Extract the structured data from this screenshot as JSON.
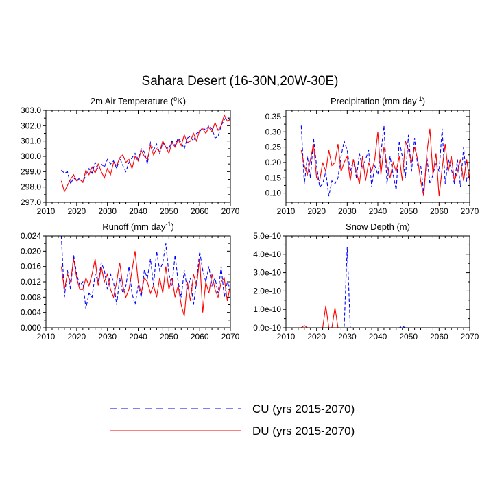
{
  "suptitle": "Sahara Desert (16-30N,20W-30E)",
  "legend": {
    "items": [
      {
        "label": "CU (yrs 2015-2070)",
        "color": "#0000ff",
        "dash": true
      },
      {
        "label": "DU (yrs 2015-2070)",
        "color": "#ff0000",
        "dash": false
      }
    ]
  },
  "chart_data": [
    {
      "type": "line",
      "title": "2m Air Temperature (°K)",
      "title_parts": [
        "2m Air Temperature (",
        "o",
        "K)"
      ],
      "xlim": [
        2010,
        2070
      ],
      "ylim": [
        297.0,
        303.0
      ],
      "xticks": [
        2010,
        2020,
        2030,
        2040,
        2050,
        2060,
        2070
      ],
      "yticks": [
        "297.0",
        "298.0",
        "299.0",
        "300.0",
        "301.0",
        "302.0",
        "303.0"
      ],
      "x": [
        2015,
        2016,
        2017,
        2018,
        2019,
        2020,
        2021,
        2022,
        2023,
        2024,
        2025,
        2026,
        2027,
        2028,
        2029,
        2030,
        2031,
        2032,
        2033,
        2034,
        2035,
        2036,
        2037,
        2038,
        2039,
        2040,
        2041,
        2042,
        2043,
        2044,
        2045,
        2046,
        2047,
        2048,
        2049,
        2050,
        2051,
        2052,
        2053,
        2054,
        2055,
        2056,
        2057,
        2058,
        2059,
        2060,
        2061,
        2062,
        2063,
        2064,
        2065,
        2066,
        2067,
        2068,
        2069,
        2070
      ],
      "series": [
        {
          "name": "CU (yrs 2015-2070)",
          "color": "#0000ff",
          "dash": true,
          "values": [
            299.1,
            298.9,
            299.0,
            298.2,
            298.6,
            298.4,
            298.6,
            298.3,
            298.8,
            299.2,
            298.9,
            299.6,
            299.1,
            299.5,
            299.3,
            299.8,
            299.5,
            299.7,
            299.2,
            299.9,
            299.4,
            299.0,
            299.6,
            299.9,
            300.2,
            299.8,
            300.5,
            300.3,
            299.5,
            300.9,
            300.4,
            300.8,
            300.2,
            300.9,
            300.6,
            300.5,
            301.0,
            300.7,
            301.2,
            300.9,
            300.5,
            301.2,
            301.3,
            301.0,
            301.5,
            301.6,
            301.9,
            301.7,
            302.0,
            301.8,
            301.2,
            301.3,
            302.0,
            302.4,
            302.6,
            302.3
          ]
        },
        {
          "name": "DU (yrs 2015-2070)",
          "color": "#ff0000",
          "dash": false,
          "values": [
            298.4,
            297.7,
            298.1,
            298.5,
            298.8,
            298.4,
            298.5,
            298.3,
            299.1,
            298.8,
            299.3,
            298.9,
            299.5,
            299.0,
            298.6,
            299.2,
            298.8,
            299.6,
            299.4,
            299.9,
            300.1,
            299.6,
            299.8,
            299.2,
            300.0,
            299.7,
            300.4,
            300.0,
            299.8,
            300.7,
            300.1,
            300.5,
            300.3,
            301.0,
            300.6,
            300.2,
            300.9,
            300.6,
            301.1,
            300.7,
            301.4,
            300.9,
            301.0,
            301.5,
            301.0,
            301.7,
            301.8,
            301.5,
            301.9,
            301.6,
            302.2,
            301.7,
            302.0,
            302.7,
            302.3,
            302.4
          ]
        }
      ]
    },
    {
      "type": "line",
      "title": "Precipitation (mm day-1)",
      "title_parts": [
        "Precipitation (mm day",
        "-1",
        ")"
      ],
      "xlim": [
        2010,
        2070
      ],
      "ylim": [
        0.07,
        0.37
      ],
      "xticks": [
        2010,
        2020,
        2030,
        2040,
        2050,
        2060,
        2070
      ],
      "yticks": [
        "0.10",
        "0.15",
        "0.20",
        "0.25",
        "0.30",
        "0.35"
      ],
      "x": [
        2015,
        2016,
        2017,
        2018,
        2019,
        2020,
        2021,
        2022,
        2023,
        2024,
        2025,
        2026,
        2027,
        2028,
        2029,
        2030,
        2031,
        2032,
        2033,
        2034,
        2035,
        2036,
        2037,
        2038,
        2039,
        2040,
        2041,
        2042,
        2043,
        2044,
        2045,
        2046,
        2047,
        2048,
        2049,
        2050,
        2051,
        2052,
        2053,
        2054,
        2055,
        2056,
        2057,
        2058,
        2059,
        2060,
        2061,
        2062,
        2063,
        2064,
        2065,
        2066,
        2067,
        2068,
        2069,
        2070
      ],
      "series": [
        {
          "name": "CU (yrs 2015-2070)",
          "color": "#0000ff",
          "dash": true,
          "values": [
            0.32,
            0.13,
            0.22,
            0.15,
            0.28,
            0.19,
            0.12,
            0.13,
            0.17,
            0.09,
            0.14,
            0.13,
            0.15,
            0.22,
            0.27,
            0.24,
            0.17,
            0.21,
            0.15,
            0.23,
            0.18,
            0.21,
            0.24,
            0.12,
            0.19,
            0.16,
            0.23,
            0.32,
            0.13,
            0.22,
            0.16,
            0.11,
            0.27,
            0.22,
            0.15,
            0.29,
            0.17,
            0.28,
            0.19,
            0.19,
            0.1,
            0.22,
            0.13,
            0.16,
            0.2,
            0.17,
            0.31,
            0.13,
            0.21,
            0.18,
            0.13,
            0.21,
            0.12,
            0.25,
            0.14,
            0.16
          ]
        },
        {
          "name": "DU (yrs 2015-2070)",
          "color": "#ff0000",
          "dash": false,
          "values": [
            0.24,
            0.19,
            0.16,
            0.21,
            0.26,
            0.15,
            0.14,
            0.2,
            0.17,
            0.24,
            0.19,
            0.2,
            0.26,
            0.17,
            0.2,
            0.22,
            0.14,
            0.21,
            0.17,
            0.13,
            0.22,
            0.14,
            0.2,
            0.17,
            0.21,
            0.3,
            0.16,
            0.25,
            0.19,
            0.15,
            0.2,
            0.17,
            0.22,
            0.14,
            0.27,
            0.24,
            0.2,
            0.25,
            0.21,
            0.14,
            0.09,
            0.23,
            0.31,
            0.16,
            0.23,
            0.09,
            0.18,
            0.26,
            0.17,
            0.22,
            0.14,
            0.17,
            0.21,
            0.14,
            0.21,
            0.14
          ]
        }
      ]
    },
    {
      "type": "line",
      "title": "Runoff (mm day-1)",
      "title_parts": [
        "Runoff (mm day",
        "-1",
        ")"
      ],
      "xlim": [
        2010,
        2070
      ],
      "ylim": [
        0.0,
        0.024
      ],
      "xticks": [
        2010,
        2020,
        2030,
        2040,
        2050,
        2060,
        2070
      ],
      "yticks": [
        "0.000",
        "0.004",
        "0.008",
        "0.012",
        "0.016",
        "0.020",
        "0.024"
      ],
      "x": [
        2015,
        2016,
        2017,
        2018,
        2019,
        2020,
        2021,
        2022,
        2023,
        2024,
        2025,
        2026,
        2027,
        2028,
        2029,
        2030,
        2031,
        2032,
        2033,
        2034,
        2035,
        2036,
        2037,
        2038,
        2039,
        2040,
        2041,
        2042,
        2043,
        2044,
        2045,
        2046,
        2047,
        2048,
        2049,
        2050,
        2051,
        2052,
        2053,
        2054,
        2055,
        2056,
        2057,
        2058,
        2059,
        2060,
        2061,
        2062,
        2063,
        2064,
        2065,
        2066,
        2067,
        2068,
        2069,
        2070
      ],
      "series": [
        {
          "name": "CU (yrs 2015-2070)",
          "color": "#0000ff",
          "dash": true,
          "values": [
            0.024,
            0.008,
            0.015,
            0.01,
            0.019,
            0.014,
            0.011,
            0.012,
            0.005,
            0.009,
            0.008,
            0.014,
            0.012,
            0.017,
            0.015,
            0.01,
            0.014,
            0.012,
            0.006,
            0.013,
            0.009,
            0.011,
            0.016,
            0.009,
            0.006,
            0.011,
            0.008,
            0.015,
            0.013,
            0.018,
            0.011,
            0.02,
            0.015,
            0.017,
            0.022,
            0.014,
            0.011,
            0.019,
            0.012,
            0.008,
            0.015,
            0.01,
            0.013,
            0.006,
            0.012,
            0.02,
            0.015,
            0.012,
            0.016,
            0.011,
            0.013,
            0.009,
            0.016,
            0.008,
            0.012,
            0.01
          ]
        },
        {
          "name": "DU (yrs 2015-2070)",
          "color": "#ff0000",
          "dash": false,
          "values": [
            0.016,
            0.01,
            0.014,
            0.012,
            0.018,
            0.013,
            0.01,
            0.01,
            0.013,
            0.011,
            0.014,
            0.018,
            0.011,
            0.016,
            0.012,
            0.014,
            0.01,
            0.008,
            0.012,
            0.017,
            0.011,
            0.008,
            0.01,
            0.015,
            0.02,
            0.012,
            0.009,
            0.013,
            0.012,
            0.009,
            0.011,
            0.008,
            0.013,
            0.009,
            0.016,
            0.01,
            0.013,
            0.008,
            0.011,
            0.006,
            0.003,
            0.012,
            0.007,
            0.014,
            0.011,
            0.018,
            0.004,
            0.012,
            0.009,
            0.014,
            0.01,
            0.008,
            0.012,
            0.013,
            0.007,
            0.011
          ]
        }
      ]
    },
    {
      "type": "line",
      "title": "Snow Depth (m)",
      "title_parts": [
        "Snow Depth (m)"
      ],
      "xlim": [
        2010,
        2070
      ],
      "ylim": [
        0.0,
        5e-10
      ],
      "xticks": [
        2010,
        2020,
        2030,
        2040,
        2050,
        2060,
        2070
      ],
      "yticks": [
        "0.0e-10",
        "1.0e-10",
        "2.0e-10",
        "3.0e-10",
        "4.0e-10",
        "5.0e-10"
      ],
      "x": [
        2015,
        2016,
        2017,
        2018,
        2019,
        2020,
        2021,
        2022,
        2023,
        2024,
        2025,
        2026,
        2027,
        2028,
        2029,
        2030,
        2031,
        2032,
        2033,
        2034,
        2035,
        2036,
        2037,
        2038,
        2039,
        2040,
        2041,
        2042,
        2043,
        2044,
        2045,
        2046,
        2047,
        2048,
        2049,
        2050,
        2051,
        2052,
        2053,
        2054,
        2055,
        2056,
        2057,
        2058,
        2059,
        2060,
        2061,
        2062,
        2063,
        2064,
        2065,
        2066,
        2067,
        2068,
        2069,
        2070
      ],
      "series": [
        {
          "name": "CU (yrs 2015-2070)",
          "color": "#0000ff",
          "dash": true,
          "values": [
            0,
            0,
            0,
            0,
            0,
            0,
            0,
            0,
            0,
            0,
            0,
            0,
            0,
            0,
            0,
            4.4e-10,
            0,
            0,
            0,
            0,
            0,
            0,
            0,
            0,
            0,
            0,
            0,
            0,
            0,
            0,
            0,
            0,
            0,
            8e-12,
            0,
            0,
            0,
            0,
            0,
            0,
            0,
            0,
            0,
            0,
            0,
            0,
            0,
            0,
            0,
            0,
            0,
            0,
            0,
            0,
            0,
            0
          ]
        },
        {
          "name": "DU (yrs 2015-2070)",
          "color": "#ff0000",
          "dash": false,
          "values": [
            0,
            1.2e-11,
            0,
            0,
            0,
            0,
            0,
            0,
            1.2e-10,
            0,
            0,
            1.1e-10,
            0,
            0,
            0,
            0,
            0,
            0,
            0,
            0,
            0,
            0,
            0,
            0,
            0,
            0,
            0,
            0,
            0,
            0,
            0,
            0,
            0,
            0,
            0,
            0,
            0,
            0,
            0,
            0,
            0,
            0,
            0,
            0,
            0,
            0,
            0,
            0,
            0,
            0,
            0,
            0,
            0,
            0,
            0,
            0
          ]
        }
      ]
    }
  ]
}
